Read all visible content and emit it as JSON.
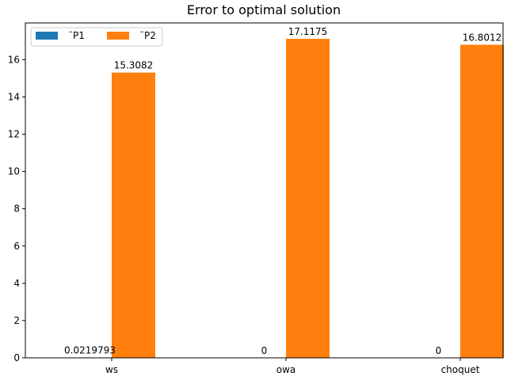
{
  "chart_data": {
    "type": "bar",
    "title": "Error to optimal solution",
    "xlabel": "",
    "ylabel": "",
    "categories": [
      "ws",
      "owa",
      "choquet"
    ],
    "series": [
      {
        "name": "¨P1",
        "values": [
          0.0219793,
          0,
          0
        ],
        "labels": [
          "0.0219793",
          "0",
          "0"
        ],
        "color": "#1f77b4"
      },
      {
        "name": "¨P2",
        "values": [
          15.3082,
          17.1175,
          16.8012
        ],
        "labels": [
          "15.3082",
          "17.1175",
          "16.8012"
        ],
        "color": "#ff7f0e"
      }
    ],
    "ylim": [
      0,
      17.97
    ],
    "yticks": [
      0,
      2,
      4,
      6,
      8,
      10,
      12,
      14,
      16
    ],
    "legend": "upper-left",
    "grid": false
  }
}
